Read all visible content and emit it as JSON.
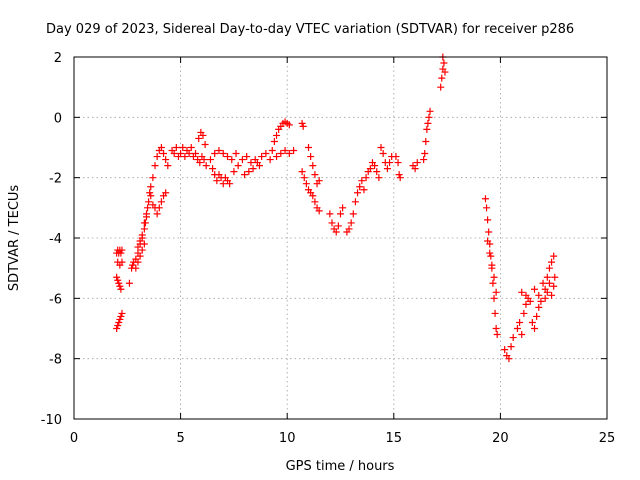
{
  "chart_data": {
    "type": "scatter",
    "title": "Day 029 of 2023, Sidereal Day-to-day VTEC variation (SDTVAR) for receiver p286",
    "xlabel": "GPS time / hours",
    "ylabel": "SDTVAR / TECUs",
    "xlim": [
      0,
      25
    ],
    "ylim": [
      -10,
      2
    ],
    "x_ticks": [
      0,
      5,
      10,
      15,
      20,
      25
    ],
    "x_tick_labels": [
      "0",
      "5",
      "10",
      "15",
      "20",
      "25"
    ],
    "y_ticks": [
      -10,
      -8,
      -6,
      -4,
      -2,
      0,
      2
    ],
    "y_tick_labels": [
      "-10",
      "-8",
      "-6",
      "-4",
      "-2",
      "0",
      "2"
    ],
    "grid": true,
    "marker": "+",
    "color": "#ff0000",
    "series": [
      {
        "name": "p286",
        "points": [
          [
            2.0,
            -7.0
          ],
          [
            2.05,
            -6.9
          ],
          [
            2.1,
            -6.8
          ],
          [
            2.15,
            -6.7
          ],
          [
            2.2,
            -6.6
          ],
          [
            2.25,
            -6.5
          ],
          [
            2.0,
            -5.3
          ],
          [
            2.05,
            -5.4
          ],
          [
            2.1,
            -5.5
          ],
          [
            2.15,
            -5.6
          ],
          [
            2.2,
            -5.7
          ],
          [
            2.0,
            -4.5
          ],
          [
            2.05,
            -4.4
          ],
          [
            2.1,
            -4.5
          ],
          [
            2.15,
            -4.4
          ],
          [
            2.2,
            -4.5
          ],
          [
            2.25,
            -4.4
          ],
          [
            2.05,
            -4.8
          ],
          [
            2.15,
            -4.9
          ],
          [
            2.25,
            -4.8
          ],
          [
            2.6,
            -5.5
          ],
          [
            2.7,
            -5.0
          ],
          [
            2.75,
            -4.9
          ],
          [
            2.8,
            -4.8
          ],
          [
            2.9,
            -4.7
          ],
          [
            3.0,
            -4.5
          ],
          [
            3.1,
            -4.2
          ],
          [
            3.2,
            -4.0
          ],
          [
            3.3,
            -3.7
          ],
          [
            3.35,
            -3.5
          ],
          [
            3.4,
            -3.2
          ],
          [
            3.45,
            -3.0
          ],
          [
            3.5,
            -2.8
          ],
          [
            3.55,
            -2.5
          ],
          [
            3.6,
            -2.3
          ],
          [
            2.9,
            -5.0
          ],
          [
            3.0,
            -4.8
          ],
          [
            3.1,
            -4.6
          ],
          [
            3.2,
            -4.4
          ],
          [
            3.3,
            -4.2
          ],
          [
            3.0,
            -4.3
          ],
          [
            3.1,
            -4.1
          ],
          [
            3.2,
            -3.9
          ],
          [
            3.3,
            -3.5
          ],
          [
            3.4,
            -3.3
          ],
          [
            3.6,
            -2.6
          ],
          [
            3.7,
            -2.9
          ],
          [
            3.8,
            -3.0
          ],
          [
            3.9,
            -3.2
          ],
          [
            4.0,
            -3.0
          ],
          [
            4.1,
            -2.8
          ],
          [
            4.2,
            -2.6
          ],
          [
            4.3,
            -2.5
          ],
          [
            3.7,
            -2.0
          ],
          [
            3.8,
            -1.6
          ],
          [
            3.9,
            -1.3
          ],
          [
            4.0,
            -1.1
          ],
          [
            4.1,
            -1.0
          ],
          [
            4.2,
            -1.2
          ],
          [
            4.3,
            -1.4
          ],
          [
            4.4,
            -1.6
          ],
          [
            4.6,
            -1.1
          ],
          [
            4.7,
            -1.2
          ],
          [
            4.8,
            -1.0
          ],
          [
            4.9,
            -1.3
          ],
          [
            5.0,
            -1.2
          ],
          [
            5.1,
            -1.0
          ],
          [
            5.2,
            -1.3
          ],
          [
            5.3,
            -1.1
          ],
          [
            5.4,
            -1.2
          ],
          [
            5.5,
            -1.0
          ],
          [
            5.6,
            -1.3
          ],
          [
            5.7,
            -1.2
          ],
          [
            5.8,
            -1.4
          ],
          [
            5.9,
            -1.5
          ],
          [
            6.0,
            -1.3
          ],
          [
            6.1,
            -1.4
          ],
          [
            6.2,
            -1.6
          ],
          [
            5.85,
            -0.7
          ],
          [
            5.95,
            -0.5
          ],
          [
            6.05,
            -0.6
          ],
          [
            6.15,
            -0.9
          ],
          [
            6.4,
            -1.4
          ],
          [
            6.5,
            -1.7
          ],
          [
            6.6,
            -1.9
          ],
          [
            6.7,
            -2.1
          ],
          [
            6.8,
            -1.9
          ],
          [
            6.9,
            -2.0
          ],
          [
            7.0,
            -2.2
          ],
          [
            7.1,
            -2.0
          ],
          [
            7.2,
            -2.1
          ],
          [
            7.3,
            -2.2
          ],
          [
            6.6,
            -1.2
          ],
          [
            6.8,
            -1.1
          ],
          [
            7.0,
            -1.2
          ],
          [
            7.2,
            -1.3
          ],
          [
            7.4,
            -1.4
          ],
          [
            7.6,
            -1.2
          ],
          [
            7.5,
            -1.8
          ],
          [
            7.7,
            -1.6
          ],
          [
            7.9,
            -1.4
          ],
          [
            8.1,
            -1.3
          ],
          [
            8.3,
            -1.5
          ],
          [
            8.5,
            -1.4
          ],
          [
            8.7,
            -1.6
          ],
          [
            8.0,
            -1.9
          ],
          [
            8.2,
            -1.8
          ],
          [
            8.4,
            -1.7
          ],
          [
            8.6,
            -1.5
          ],
          [
            8.8,
            -1.3
          ],
          [
            9.0,
            -1.2
          ],
          [
            9.2,
            -1.4
          ],
          [
            9.3,
            -1.1
          ],
          [
            9.4,
            -0.8
          ],
          [
            9.5,
            -0.6
          ],
          [
            9.6,
            -0.4
          ],
          [
            9.7,
            -0.3
          ],
          [
            9.8,
            -0.2
          ],
          [
            9.9,
            -0.15
          ],
          [
            10.0,
            -0.2
          ],
          [
            10.1,
            -0.25
          ],
          [
            9.5,
            -1.3
          ],
          [
            9.7,
            -1.2
          ],
          [
            9.9,
            -1.1
          ],
          [
            10.1,
            -1.2
          ],
          [
            10.3,
            -1.1
          ],
          [
            10.7,
            -0.2
          ],
          [
            10.75,
            -0.3
          ],
          [
            10.7,
            -1.8
          ],
          [
            10.8,
            -2.0
          ],
          [
            10.9,
            -2.2
          ],
          [
            11.0,
            -2.4
          ],
          [
            11.1,
            -2.5
          ],
          [
            11.2,
            -2.6
          ],
          [
            11.3,
            -2.8
          ],
          [
            11.4,
            -3.0
          ],
          [
            11.5,
            -3.1
          ],
          [
            11.0,
            -1.0
          ],
          [
            11.1,
            -1.3
          ],
          [
            11.2,
            -1.6
          ],
          [
            11.3,
            -1.9
          ],
          [
            11.4,
            -2.2
          ],
          [
            11.5,
            -2.1
          ],
          [
            12.0,
            -3.2
          ],
          [
            12.1,
            -3.5
          ],
          [
            12.2,
            -3.7
          ],
          [
            12.3,
            -3.8
          ],
          [
            12.4,
            -3.6
          ],
          [
            12.5,
            -3.2
          ],
          [
            12.6,
            -3.0
          ],
          [
            12.8,
            -3.8
          ],
          [
            12.9,
            -3.7
          ],
          [
            13.0,
            -3.5
          ],
          [
            13.1,
            -3.2
          ],
          [
            13.2,
            -2.8
          ],
          [
            13.3,
            -2.5
          ],
          [
            13.4,
            -2.3
          ],
          [
            13.5,
            -2.1
          ],
          [
            13.6,
            -2.4
          ],
          [
            13.7,
            -2.0
          ],
          [
            13.8,
            -1.8
          ],
          [
            13.9,
            -1.7
          ],
          [
            14.0,
            -1.5
          ],
          [
            14.1,
            -1.6
          ],
          [
            14.2,
            -1.8
          ],
          [
            14.3,
            -2.0
          ],
          [
            14.4,
            -1.0
          ],
          [
            14.5,
            -1.2
          ],
          [
            14.6,
            -1.5
          ],
          [
            14.7,
            -1.7
          ],
          [
            14.8,
            -1.5
          ],
          [
            14.9,
            -1.3
          ],
          [
            15.1,
            -1.3
          ],
          [
            15.2,
            -1.5
          ],
          [
            15.25,
            -1.9
          ],
          [
            15.3,
            -2.0
          ],
          [
            15.9,
            -1.6
          ],
          [
            16.0,
            -1.7
          ],
          [
            16.1,
            -1.5
          ],
          [
            16.4,
            -1.4
          ],
          [
            16.45,
            -1.2
          ],
          [
            16.5,
            -0.8
          ],
          [
            16.55,
            -0.4
          ],
          [
            16.6,
            -0.2
          ],
          [
            16.65,
            0.0
          ],
          [
            16.7,
            0.2
          ],
          [
            17.2,
            1.0
          ],
          [
            17.25,
            1.3
          ],
          [
            17.3,
            1.6
          ],
          [
            17.35,
            1.8
          ],
          [
            17.3,
            2.0
          ],
          [
            17.4,
            1.5
          ],
          [
            19.3,
            -2.7
          ],
          [
            19.35,
            -3.0
          ],
          [
            19.4,
            -3.4
          ],
          [
            19.45,
            -3.8
          ],
          [
            19.5,
            -4.2
          ],
          [
            19.55,
            -4.6
          ],
          [
            19.6,
            -5.0
          ],
          [
            19.65,
            -5.5
          ],
          [
            19.7,
            -6.0
          ],
          [
            19.75,
            -6.5
          ],
          [
            19.8,
            -7.0
          ],
          [
            19.85,
            -7.2
          ],
          [
            19.4,
            -4.1
          ],
          [
            19.5,
            -4.5
          ],
          [
            19.6,
            -4.9
          ],
          [
            19.7,
            -5.3
          ],
          [
            19.8,
            -5.8
          ],
          [
            20.2,
            -7.7
          ],
          [
            20.3,
            -7.9
          ],
          [
            20.4,
            -8.0
          ],
          [
            20.5,
            -7.6
          ],
          [
            20.6,
            -7.3
          ],
          [
            20.8,
            -7.0
          ],
          [
            20.9,
            -6.8
          ],
          [
            21.0,
            -7.2
          ],
          [
            21.1,
            -6.5
          ],
          [
            21.2,
            -6.2
          ],
          [
            21.3,
            -6.0
          ],
          [
            21.0,
            -5.8
          ],
          [
            21.2,
            -5.9
          ],
          [
            21.4,
            -6.1
          ],
          [
            21.6,
            -5.7
          ],
          [
            21.8,
            -5.9
          ],
          [
            21.5,
            -6.8
          ],
          [
            21.6,
            -7.0
          ],
          [
            21.7,
            -6.6
          ],
          [
            21.8,
            -6.3
          ],
          [
            21.9,
            -6.1
          ],
          [
            22.0,
            -5.5
          ],
          [
            22.1,
            -5.7
          ],
          [
            22.2,
            -5.3
          ],
          [
            22.3,
            -5.0
          ],
          [
            22.4,
            -4.8
          ],
          [
            22.5,
            -4.6
          ],
          [
            22.1,
            -6.0
          ],
          [
            22.2,
            -5.8
          ],
          [
            22.3,
            -5.5
          ],
          [
            22.4,
            -5.9
          ],
          [
            22.5,
            -5.6
          ],
          [
            22.55,
            -5.3
          ]
        ]
      }
    ]
  }
}
